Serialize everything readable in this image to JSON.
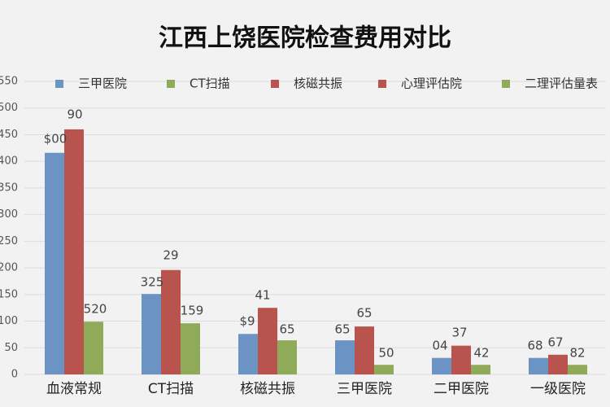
{
  "chart_data": {
    "type": "bar",
    "title": "江西上饶医院检查费用对比",
    "categories": [
      "血液常规",
      "CT扫描",
      "核磁共振",
      "三甲医院",
      "二甲医院",
      "一级医院"
    ],
    "series": [
      {
        "name": "三甲医院",
        "color": "#6b93c4",
        "values": [
          416,
          151,
          76,
          64,
          31,
          31
        ]
      },
      {
        "name": "CT扫描",
        "color": "#8fab5a",
        "values": [
          99,
          96,
          64,
          18,
          18,
          18
        ]
      },
      {
        "name": "核磁共振",
        "color": "#b9534e",
        "values": [
          460,
          196,
          125,
          90,
          54,
          37
        ]
      },
      {
        "name": "心理评估院",
        "color": "#b9534e",
        "values": [
          null,
          null,
          null,
          null,
          null,
          null
        ]
      },
      {
        "name": "二理评估量表",
        "color": "#8fab5a",
        "values": [
          null,
          null,
          null,
          null,
          null,
          null
        ]
      }
    ],
    "ylim": [
      0,
      550
    ],
    "yticks": [
      0,
      50,
      100,
      150,
      200,
      250,
      300,
      350,
      400,
      450,
      500,
      550
    ],
    "grid": true,
    "annotations": [
      "$00",
      "90",
      "325",
      "29",
      "520",
      "159",
      "$9",
      "41",
      "65",
      "65",
      "65",
      "50",
      "04",
      "37",
      "42",
      "68",
      "67",
      "82"
    ]
  }
}
